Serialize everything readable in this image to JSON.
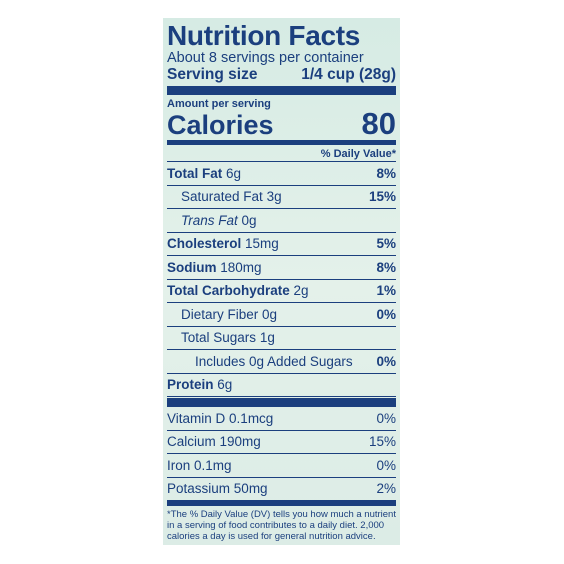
{
  "header": {
    "title": "Nutrition Facts",
    "servings": "About 8 servings per container",
    "serving_size_label": "Serving size",
    "serving_size": "1/4 cup (28g)"
  },
  "calories": {
    "amount_label": "Amount per serving",
    "label": "Calories",
    "value": "80"
  },
  "daily_value_header": "% Daily Value*",
  "nutrients": [
    {
      "name": "Total Fat",
      "amount": "6g",
      "dv": "8%",
      "bold": true,
      "indent": 0
    },
    {
      "name": "Saturated Fat",
      "amount": "3g",
      "dv": "15%",
      "bold": false,
      "indent": 1
    },
    {
      "name": "Trans Fat",
      "amount": "0g",
      "dv": null,
      "bold": false,
      "indent": 1
    },
    {
      "name": "Cholesterol",
      "amount": "15mg",
      "dv": "5%",
      "bold": true,
      "indent": 0
    },
    {
      "name": "Sodium",
      "amount": "180mg",
      "dv": "8%",
      "bold": true,
      "indent": 0
    },
    {
      "name": "Total Carbohydrate",
      "amount": "2g",
      "dv": "1%",
      "bold": true,
      "indent": 0
    },
    {
      "name": "Dietary Fiber",
      "amount": "0g",
      "dv": "0%",
      "bold": false,
      "indent": 1
    },
    {
      "name": "Total Sugars",
      "amount": "1g",
      "dv": null,
      "bold": false,
      "indent": 1
    },
    {
      "name": "Includes 0g Added Sugars",
      "amount": null,
      "dv": "0%",
      "bold": false,
      "indent": 2
    },
    {
      "name": "Protein",
      "amount": "6g",
      "dv": null,
      "bold": true,
      "indent": 0
    }
  ],
  "vitamins": [
    {
      "name": "Vitamin D",
      "amount": "0.1mcg",
      "dv": "0%"
    },
    {
      "name": "Calcium",
      "amount": "190mg",
      "dv": "15%"
    },
    {
      "name": "Iron",
      "amount": "0.1mg",
      "dv": "0%"
    },
    {
      "name": "Potassium",
      "amount": "50mg",
      "dv": "2%"
    }
  ],
  "footnote": "*The % Daily Value (DV) tells you how much a nutrient in a serving of food contributes to a daily diet. 2,000 calories a day is used for general nutrition advice."
}
